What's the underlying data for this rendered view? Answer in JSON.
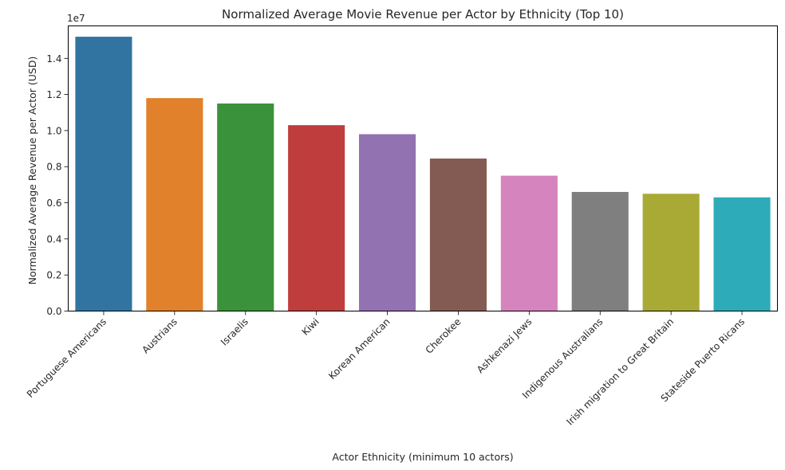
{
  "chart_data": {
    "type": "bar",
    "title": "Normalized Average Movie Revenue per Actor by Ethnicity (Top 10)",
    "xlabel": "Actor Ethnicity (minimum 10 actors)",
    "ylabel": "Normalized Average Revenue per Actor (USD)",
    "y_offset_label": "1e7",
    "y_scale": 10000000,
    "ylim": [
      0,
      1.58
    ],
    "yticks": [
      0.0,
      0.2,
      0.4,
      0.6,
      0.8,
      1.0,
      1.2,
      1.4
    ],
    "ytick_labels": [
      "0.0",
      "0.2",
      "0.4",
      "0.6",
      "0.8",
      "1.0",
      "1.2",
      "1.4"
    ],
    "categories": [
      "Portuguese Americans",
      "Austrians",
      "Israelis",
      "Kiwi",
      "Korean American",
      "Cherokee",
      "Ashkenazi Jews",
      "Indigenous Australians",
      "Irish migration to Great Britain",
      "Stateside Puerto Ricans"
    ],
    "values": [
      15200000,
      11800000,
      11500000,
      10300000,
      9800000,
      8450000,
      7500000,
      6600000,
      6500000,
      6300000
    ],
    "colors": [
      "#3274a1",
      "#e1812c",
      "#3a923a",
      "#c03d3e",
      "#9372b2",
      "#845b53",
      "#d684bd",
      "#7f7f7f",
      "#a9aa35",
      "#2eabb8"
    ],
    "grid": false,
    "legend": "none"
  }
}
